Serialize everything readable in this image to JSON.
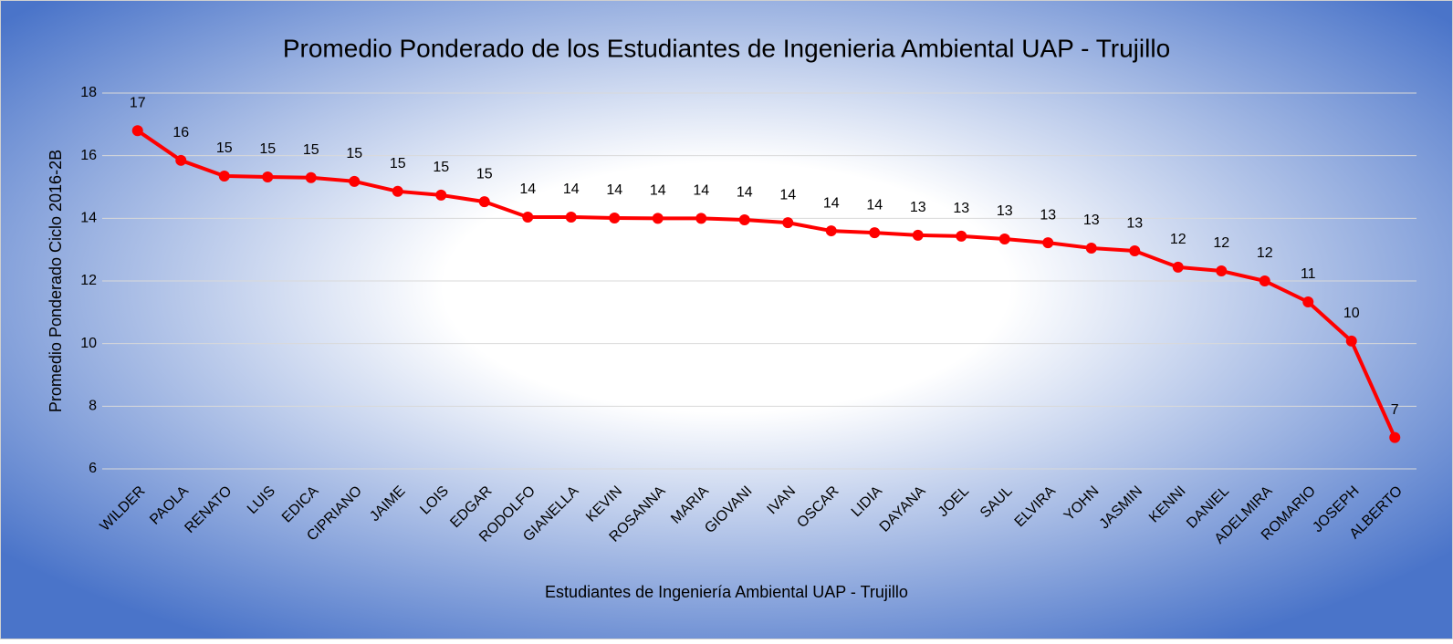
{
  "chart_data": {
    "type": "line",
    "title": "Promedio Ponderado de los Estudiantes de Ingenieria Ambiental UAP - Trujillo",
    "x_label": "Estudiantes de Ingeniería Ambiental UAP - Trujillo",
    "y_label": "Promedio Ponderado Ciclo 2016-2B",
    "categories": [
      "WILDER",
      "PAOLA",
      "RENATO",
      "LUIS",
      "EDICA",
      "CIPRIANO",
      "JAIME",
      "LOIS",
      "EDGAR",
      "RODOLFO",
      "GIANELLA",
      "KEVIN",
      "ROSANNA",
      "MARIA",
      "GIOVANI",
      "IVAN",
      "OSCAR",
      "LIDIA",
      "DAYANA",
      "JOEL",
      "SAUL",
      "ELVIRA",
      "YOHN",
      "JASMIN",
      "KENNI",
      "DANIEL",
      "ADELMIRA",
      "ROMARIO",
      "JOSEPH",
      "ALBERTO"
    ],
    "series": [
      {
        "name": "Promedio Ponderado",
        "color": "#ff0000",
        "values": [
          16.8,
          15.85,
          15.35,
          15.32,
          15.3,
          15.18,
          14.86,
          14.74,
          14.53,
          14.04,
          14.04,
          14.01,
          14.0,
          14.0,
          13.95,
          13.86,
          13.6,
          13.54,
          13.46,
          13.43,
          13.34,
          13.22,
          13.05,
          12.96,
          12.44,
          12.32,
          12.0,
          11.33,
          10.08,
          7.0
        ],
        "value_labels": [
          "17",
          "16",
          "15",
          "15",
          "15",
          "15",
          "15",
          "15",
          "15",
          "14",
          "14",
          "14",
          "14",
          "14",
          "14",
          "14",
          "14",
          "14",
          "13",
          "13",
          "13",
          "13",
          "13",
          "13",
          "12",
          "12",
          "12",
          "11",
          "10",
          "7"
        ]
      }
    ],
    "ylim": [
      6,
      18
    ],
    "yticks": [
      6,
      8,
      10,
      12,
      14,
      16,
      18
    ],
    "grid": true
  }
}
